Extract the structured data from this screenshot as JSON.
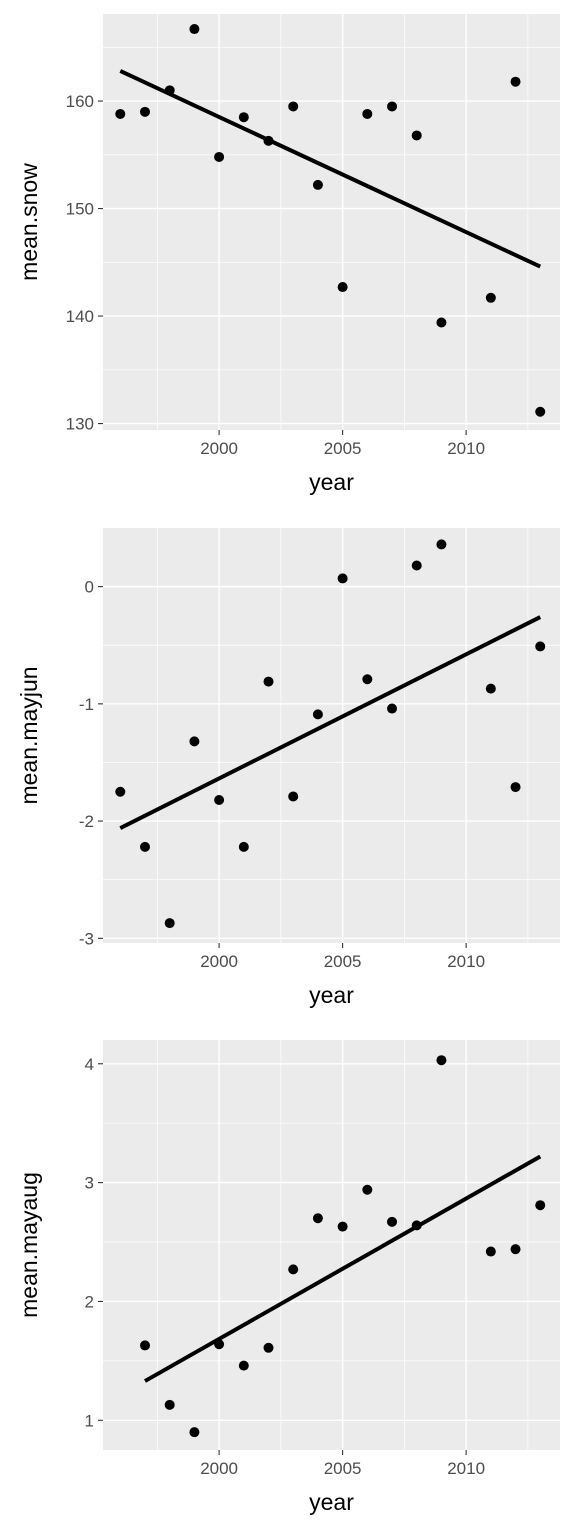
{
  "chart_data": [
    {
      "type": "scatter",
      "xlabel": "year",
      "ylabel": "mean.snow",
      "xlim": [
        1995.3,
        2013.8
      ],
      "ylim": [
        129.4,
        168.1
      ],
      "x_ticks": [
        2000,
        2005,
        2010
      ],
      "x_tick_labels": [
        "2000",
        "2005",
        "2010"
      ],
      "y_ticks": [
        130,
        140,
        150,
        160
      ],
      "y_tick_labels": [
        "130",
        "140",
        "150",
        "160"
      ],
      "grid": true,
      "points": [
        {
          "x": 1996,
          "y": 158.8
        },
        {
          "x": 1997,
          "y": 159.0
        },
        {
          "x": 1998,
          "y": 161.0
        },
        {
          "x": 1999,
          "y": 166.7
        },
        {
          "x": 2000,
          "y": 154.8
        },
        {
          "x": 2001,
          "y": 158.5
        },
        {
          "x": 2002,
          "y": 156.3
        },
        {
          "x": 2003,
          "y": 159.5
        },
        {
          "x": 2004,
          "y": 152.2
        },
        {
          "x": 2005,
          "y": 142.7
        },
        {
          "x": 2006,
          "y": 158.8
        },
        {
          "x": 2007,
          "y": 159.5
        },
        {
          "x": 2008,
          "y": 156.8
        },
        {
          "x": 2009,
          "y": 139.4
        },
        {
          "x": 2011,
          "y": 141.7
        },
        {
          "x": 2012,
          "y": 161.8
        },
        {
          "x": 2013,
          "y": 131.1
        }
      ],
      "trend_line": {
        "x": [
          1996,
          2013
        ],
        "y": [
          162.8,
          144.6
        ]
      }
    },
    {
      "type": "scatter",
      "xlabel": "year",
      "ylabel": "mean.mayjun",
      "xlim": [
        1995.3,
        2013.8
      ],
      "ylim": [
        -3.04,
        0.5
      ],
      "x_ticks": [
        2000,
        2005,
        2010
      ],
      "x_tick_labels": [
        "2000",
        "2005",
        "2010"
      ],
      "y_ticks": [
        -3,
        -2,
        -1,
        0
      ],
      "y_tick_labels": [
        "-3",
        "-2",
        "-1",
        "0"
      ],
      "grid": true,
      "points": [
        {
          "x": 1996,
          "y": -1.75
        },
        {
          "x": 1997,
          "y": -2.22
        },
        {
          "x": 1998,
          "y": -2.87
        },
        {
          "x": 1999,
          "y": -1.32
        },
        {
          "x": 2000,
          "y": -1.82
        },
        {
          "x": 2001,
          "y": -2.22
        },
        {
          "x": 2002,
          "y": -0.81
        },
        {
          "x": 2003,
          "y": -1.79
        },
        {
          "x": 2004,
          "y": -1.09
        },
        {
          "x": 2005,
          "y": 0.07
        },
        {
          "x": 2006,
          "y": -0.79
        },
        {
          "x": 2007,
          "y": -1.04
        },
        {
          "x": 2008,
          "y": 0.18
        },
        {
          "x": 2009,
          "y": 0.36
        },
        {
          "x": 2011,
          "y": -0.87
        },
        {
          "x": 2012,
          "y": -1.71
        },
        {
          "x": 2013,
          "y": -0.51
        }
      ],
      "trend_line": {
        "x": [
          1996,
          2013
        ],
        "y": [
          -2.06,
          -0.26
        ]
      }
    },
    {
      "type": "scatter",
      "xlabel": "year",
      "ylabel": "mean.mayaug",
      "xlim": [
        1995.3,
        2013.8
      ],
      "ylim": [
        0.75,
        4.2
      ],
      "x_ticks": [
        2000,
        2005,
        2010
      ],
      "x_tick_labels": [
        "2000",
        "2005",
        "2010"
      ],
      "y_ticks": [
        1,
        2,
        3,
        4
      ],
      "y_tick_labels": [
        "1",
        "2",
        "3",
        "4"
      ],
      "grid": true,
      "points": [
        {
          "x": 1997,
          "y": 1.63
        },
        {
          "x": 1998,
          "y": 1.13
        },
        {
          "x": 1999,
          "y": 0.9
        },
        {
          "x": 2000,
          "y": 1.64
        },
        {
          "x": 2001,
          "y": 1.46
        },
        {
          "x": 2002,
          "y": 1.61
        },
        {
          "x": 2003,
          "y": 2.27
        },
        {
          "x": 2004,
          "y": 2.7
        },
        {
          "x": 2005,
          "y": 2.63
        },
        {
          "x": 2006,
          "y": 2.94
        },
        {
          "x": 2007,
          "y": 2.67
        },
        {
          "x": 2008,
          "y": 2.64
        },
        {
          "x": 2009,
          "y": 4.03
        },
        {
          "x": 2011,
          "y": 2.42
        },
        {
          "x": 2012,
          "y": 2.44
        },
        {
          "x": 2013,
          "y": 2.81
        }
      ],
      "trend_line": {
        "x": [
          1997,
          2013
        ],
        "y": [
          1.33,
          3.22
        ]
      }
    }
  ]
}
